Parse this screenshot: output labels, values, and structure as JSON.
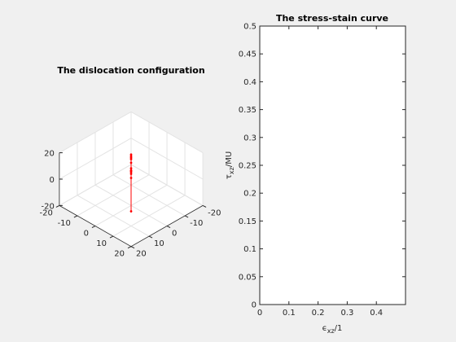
{
  "chart_data": [
    {
      "type": "line3d",
      "title": "The dislocation configuration",
      "xlim": [
        -20,
        20
      ],
      "ylim": [
        -20,
        20
      ],
      "zlim": [
        -20,
        20
      ],
      "x_ticks": [
        "-20",
        "-10",
        "0",
        "10",
        "20"
      ],
      "y_ticks": [
        "20",
        "10",
        "0",
        "-10",
        "-20"
      ],
      "z_ticks": [
        "20",
        "0",
        "-20"
      ],
      "grid": true,
      "line_color": "#ff0000",
      "segments": [
        {
          "points": [
            [
              -12,
              -12,
              -12
            ],
            [
              -12,
              -12,
              0
            ],
            [
              8,
              8,
              -12
            ]
          ]
        },
        {
          "points": [
            [
              -6,
              -6,
              -4
            ],
            [
              -4,
              -4,
              0
            ],
            [
              0,
              0,
              4
            ]
          ]
        },
        {
          "points": [
            [
              -8,
              -8,
              0
            ],
            [
              -4,
              -4,
              2
            ],
            [
              2,
              2,
              4
            ]
          ]
        },
        {
          "points": [
            [
              -6,
              -6,
              8
            ],
            [
              -4,
              -4,
              10
            ],
            [
              -2,
              -2,
              12
            ]
          ]
        }
      ]
    },
    {
      "type": "line",
      "title": "The stress-stain curve",
      "xlabel_main": "ϵ",
      "xlabel_sub": "xz",
      "xlabel_tail": "/1",
      "ylabel_main": "τ",
      "ylabel_sub": "xz",
      "ylabel_tail": "/MU",
      "xlim": [
        0,
        0.5
      ],
      "ylim": [
        0,
        0.5
      ],
      "x_ticks": [
        "0",
        "0.1",
        "0.2",
        "0.3",
        "0.4"
      ],
      "y_ticks": [
        "0",
        "0.05",
        "0.1",
        "0.15",
        "0.2",
        "0.25",
        "0.3",
        "0.35",
        "0.4",
        "0.45",
        "0.5"
      ],
      "series": []
    }
  ]
}
